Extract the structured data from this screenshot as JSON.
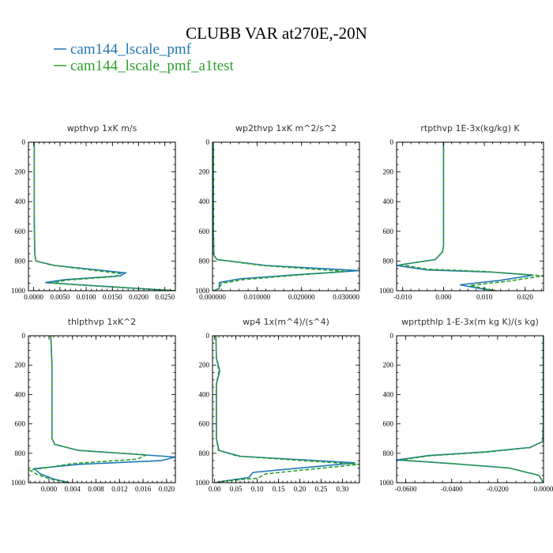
{
  "figure": {
    "title": "CLUBB VAR at270E,-20N",
    "legend": [
      {
        "label": "cam144_lscale_pmf",
        "color": "#1f77b4",
        "dash": "solid"
      },
      {
        "label": "cam144_lscale_pmf_a1test",
        "color": "#2ca02c",
        "dash": "dashed"
      }
    ]
  },
  "chart_data": [
    {
      "type": "line",
      "title": "wpthvp  1xK m/s",
      "xlim": [
        -0.001,
        0.027
      ],
      "ylim": [
        1000,
        0
      ],
      "x_ticks": [
        "0.0000",
        "0.0050",
        "0.0100",
        "0.0150",
        "0.0200",
        "0.0250"
      ],
      "x_tick_values": [
        0,
        0.005,
        0.01,
        0.015,
        0.02,
        0.025
      ],
      "y_ticks": [
        0,
        200,
        400,
        600,
        800,
        1000
      ],
      "series": [
        {
          "name": "cam144_lscale_pmf",
          "color": "#1f77b4",
          "x": [
            0.0001,
            0.0001,
            0.0001,
            0.0002,
            0.0004,
            0.004,
            0.0175,
            0.0165,
            0.006,
            0.0022,
            0.009,
            0.02,
            0.027
          ],
          "y": [
            0,
            200,
            500,
            750,
            800,
            830,
            880,
            900,
            925,
            945,
            960,
            985,
            1000
          ]
        },
        {
          "name": "cam144_lscale_pmf_a1test",
          "color": "#2ca02c",
          "x": [
            0.0001,
            0.0001,
            0.0001,
            0.0002,
            0.0004,
            0.0035,
            0.0165,
            0.0155,
            0.0065,
            0.0032,
            0.009,
            0.02,
            0.027
          ],
          "y": [
            0,
            200,
            500,
            750,
            800,
            828,
            885,
            905,
            928,
            948,
            962,
            985,
            1000
          ]
        }
      ]
    },
    {
      "type": "line",
      "title": "wp2thvp  1xK m^2/s^2",
      "xlim": [
        0,
        0.033
      ],
      "ylim": [
        1000,
        0
      ],
      "x_ticks": [
        "0.000000",
        "0.010000",
        "0.020000",
        "0.030000"
      ],
      "x_tick_values": [
        0,
        0.01,
        0.02,
        0.03
      ],
      "y_ticks": [
        0,
        200,
        400,
        600,
        800,
        1000
      ],
      "series": [
        {
          "name": "cam144_lscale_pmf",
          "color": "#1f77b4",
          "x": [
            0.0002,
            0.0002,
            0.0002,
            0.0003,
            0.001,
            0.012,
            0.033,
            0.02,
            0.006,
            0.0015,
            0.0015,
            0.0002
          ],
          "y": [
            0,
            300,
            600,
            760,
            790,
            830,
            865,
            890,
            920,
            945,
            985,
            1000
          ]
        },
        {
          "name": "cam144_lscale_pmf_a1test",
          "color": "#2ca02c",
          "x": [
            0.0002,
            0.0002,
            0.0002,
            0.0003,
            0.0009,
            0.011,
            0.03,
            0.019,
            0.007,
            0.002,
            0.0015,
            0.0002
          ],
          "y": [
            0,
            300,
            600,
            760,
            790,
            830,
            870,
            895,
            925,
            950,
            985,
            1000
          ]
        }
      ]
    },
    {
      "type": "line",
      "title": "rtpthvp  1E-3x(kg/kg) K",
      "xlim": [
        -0.0115,
        0.0245
      ],
      "ylim": [
        1000,
        0
      ],
      "x_ticks": [
        "-0.010",
        "0.000",
        "0.010",
        "0.020"
      ],
      "x_tick_values": [
        -0.01,
        0,
        0.01,
        0.02
      ],
      "y_ticks": [
        0,
        200,
        400,
        600,
        800,
        1000
      ],
      "series": [
        {
          "name": "cam144_lscale_pmf",
          "color": "#1f77b4",
          "x": [
            0,
            0,
            0,
            -0.0003,
            -0.002,
            -0.0115,
            -0.004,
            0.012,
            0.022,
            0.014,
            0.004,
            0.009,
            0.013
          ],
          "y": [
            0,
            300,
            700,
            740,
            790,
            830,
            860,
            875,
            895,
            930,
            960,
            985,
            1000
          ]
        },
        {
          "name": "cam144_lscale_pmf_a1test",
          "color": "#2ca02c",
          "x": [
            0,
            0,
            0,
            -0.0003,
            -0.002,
            -0.0105,
            -0.004,
            0.01,
            0.0245,
            0.016,
            0.0065,
            0.01,
            0.013
          ],
          "y": [
            0,
            300,
            700,
            740,
            790,
            825,
            855,
            870,
            900,
            935,
            965,
            985,
            1000
          ]
        }
      ]
    },
    {
      "type": "line",
      "title": "thlpthvp  1xK^2",
      "xlim": [
        -0.0035,
        0.0215
      ],
      "ylim": [
        1000,
        0
      ],
      "x_ticks": [
        "0.000",
        "0.004",
        "0.008",
        "0.012",
        "0.016",
        "0.020"
      ],
      "x_tick_values": [
        0,
        0.004,
        0.008,
        0.012,
        0.016,
        0.02
      ],
      "y_ticks": [
        0,
        200,
        400,
        600,
        800,
        1000
      ],
      "series": [
        {
          "name": "cam144_lscale_pmf",
          "color": "#1f77b4",
          "x": [
            0.0003,
            0.0005,
            0.0005,
            0.0005,
            0.001,
            0.005,
            0.0215,
            0.019,
            0.005,
            -0.0025,
            -0.0015,
            0.0008,
            0.0035
          ],
          "y": [
            0,
            200,
            500,
            700,
            740,
            780,
            825,
            850,
            875,
            905,
            940,
            975,
            1000
          ]
        },
        {
          "name": "cam144_lscale_pmf_a1test",
          "color": "#2ca02c",
          "x": [
            0.0003,
            0.0005,
            0.0005,
            0.0005,
            0.001,
            0.005,
            0.0166,
            0.015,
            0.004,
            -0.0033,
            -0.002,
            0.0005,
            0.0035
          ],
          "y": [
            0,
            200,
            500,
            700,
            740,
            780,
            810,
            840,
            870,
            915,
            945,
            978,
            1000
          ]
        }
      ]
    },
    {
      "type": "line",
      "title": "wp4  1x(m^4)/(s^4)",
      "xlim": [
        -0.005,
        0.34
      ],
      "ylim": [
        1000,
        0
      ],
      "x_ticks": [
        "0.00",
        "0.05",
        "0.10",
        "0.15",
        "0.20",
        "0.25",
        "0.30"
      ],
      "x_tick_values": [
        0,
        0.05,
        0.1,
        0.15,
        0.2,
        0.25,
        0.3
      ],
      "y_ticks": [
        0,
        200,
        400,
        600,
        800,
        1000
      ],
      "series": [
        {
          "name": "cam144_lscale_pmf",
          "color": "#1f77b4",
          "x": [
            0.003,
            0.004,
            0.012,
            0.004,
            0.004,
            0.01,
            0.06,
            0.33,
            0.2,
            0.09,
            0.08,
            0.02,
            0.003
          ],
          "y": [
            0,
            150,
            240,
            330,
            700,
            780,
            820,
            865,
            900,
            930,
            965,
            990,
            1000
          ]
        },
        {
          "name": "cam144_lscale_pmf_a1test",
          "color": "#2ca02c",
          "x": [
            0.003,
            0.004,
            0.01,
            0.004,
            0.004,
            0.009,
            0.055,
            0.34,
            0.22,
            0.12,
            0.1,
            0.02,
            0.003
          ],
          "y": [
            0,
            150,
            240,
            330,
            700,
            780,
            820,
            875,
            910,
            940,
            970,
            990,
            1000
          ]
        }
      ]
    },
    {
      "type": "line",
      "title": "wprtpthlp  1-E-3x(m kg K)/(s kg)",
      "xlim": [
        -0.064,
        0
      ],
      "ylim": [
        1000,
        0
      ],
      "x_ticks": [
        "-0.0600",
        "-0.0400",
        "-0.0200",
        "0.0000"
      ],
      "x_tick_values": [
        -0.06,
        -0.04,
        -0.02,
        0
      ],
      "y_ticks": [
        0,
        200,
        400,
        600,
        800,
        1000
      ],
      "series": [
        {
          "name": "cam144_lscale_pmf",
          "color": "#1f77b4",
          "x": [
            -0.0001,
            -0.0001,
            -0.0001,
            -0.0003,
            -0.006,
            -0.025,
            -0.05,
            -0.064,
            -0.04,
            -0.015,
            -0.002,
            -0.0001
          ],
          "y": [
            0,
            300,
            600,
            720,
            760,
            790,
            815,
            845,
            870,
            900,
            950,
            1000
          ]
        },
        {
          "name": "cam144_lscale_pmf_a1test",
          "color": "#2ca02c",
          "x": [
            -0.0001,
            -0.0001,
            -0.0001,
            -0.0003,
            -0.006,
            -0.025,
            -0.05,
            -0.062,
            -0.04,
            -0.015,
            -0.002,
            -0.0001
          ],
          "y": [
            0,
            300,
            600,
            720,
            762,
            792,
            817,
            845,
            870,
            900,
            950,
            1000
          ]
        }
      ]
    }
  ]
}
